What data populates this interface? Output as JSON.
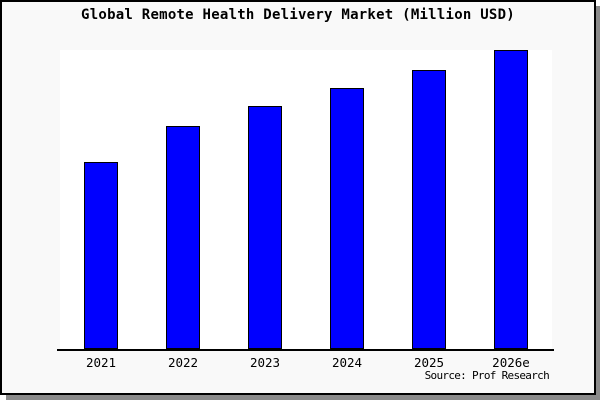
{
  "window": {
    "page_background": "#f9f9f9",
    "page_border_color": "#000000",
    "shadow_color": "#8a8a8a"
  },
  "chart_data": {
    "type": "bar",
    "title": "Global Remote Health Delivery Market (Million USD)",
    "xlabel": "",
    "ylabel": "",
    "categories": [
      "2021",
      "2022",
      "2023",
      "2024",
      "2025",
      "2026e"
    ],
    "values": [
      62.5,
      74.6,
      81.3,
      87.3,
      93.3,
      100
    ],
    "values_note": "no y-axis ticks or labels shown; values are relative bar heights with 2026e = 100",
    "ylim": [
      0,
      100
    ],
    "grid": "off",
    "legend": "none",
    "plot_background": "#ffffff",
    "bar_fill_color": "#0000ff",
    "bar_border_color": "#000000",
    "axis_line_color": "#000000"
  },
  "source_note": "Source: Prof Research"
}
